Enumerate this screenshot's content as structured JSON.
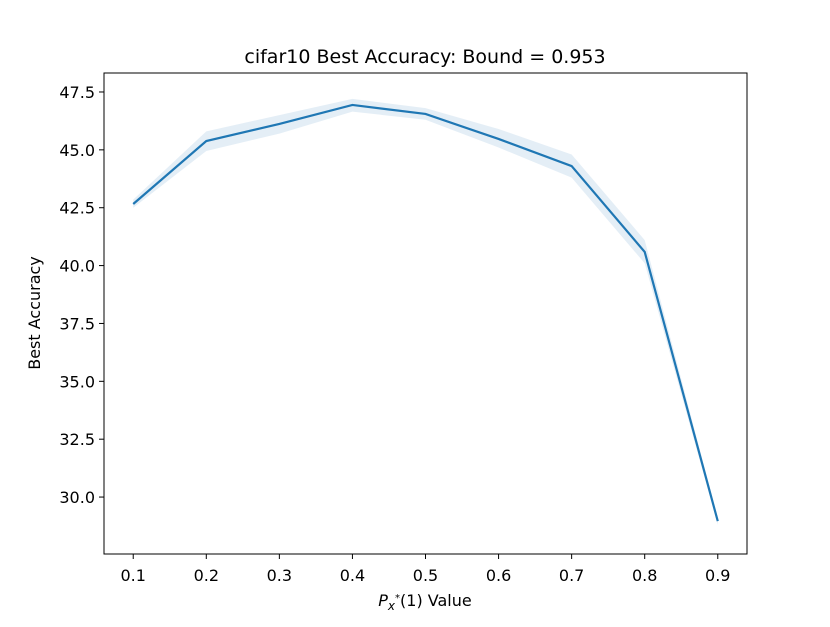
{
  "chart_data": {
    "type": "line",
    "title": "cifar10 Best Accuracy: Bound = 0.953",
    "x_label": {
      "main": "P",
      "sub": "x",
      "sup": "*",
      "rest": "(1) Value"
    },
    "y_label": "Best Accuracy",
    "x": [
      0.1,
      0.2,
      0.3,
      0.4,
      0.5,
      0.6,
      0.7,
      0.8,
      0.9
    ],
    "series": [
      {
        "color": "#1f77b4",
        "values": [
          42.66,
          45.38,
          46.12,
          46.94,
          46.55,
          45.47,
          44.3,
          40.59,
          28.96
        ],
        "lower": [
          42.5,
          44.95,
          45.7,
          46.65,
          46.3,
          45.1,
          43.8,
          40.1,
          28.8
        ],
        "upper": [
          42.85,
          45.8,
          46.5,
          47.2,
          46.8,
          45.9,
          44.8,
          41.1,
          29.1
        ]
      }
    ],
    "xlim": [
      0.06,
      0.94
    ],
    "ylim": [
      27.54,
      48.32
    ],
    "xticks": [
      0.1,
      0.2,
      0.3,
      0.4,
      0.5,
      0.6,
      0.7,
      0.8,
      0.9
    ],
    "yticks": [
      {
        "value": 30,
        "label": "30.0"
      },
      32.5,
      {
        "value": 35,
        "label": "35.0"
      },
      37.5,
      {
        "value": 40,
        "label": "40.0"
      },
      42.5,
      {
        "value": 45,
        "label": "45.0"
      },
      47.5
    ],
    "grid": false
  }
}
